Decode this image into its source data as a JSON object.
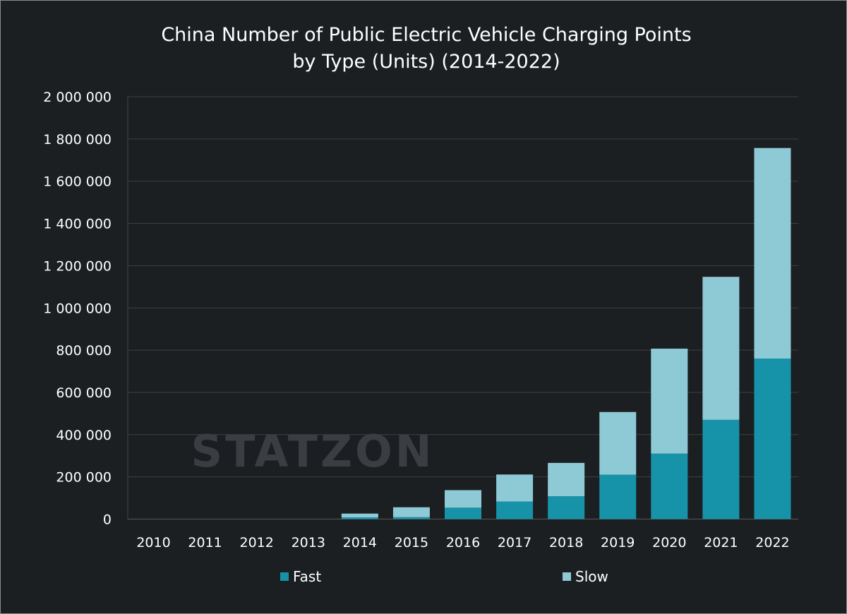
{
  "chart_data": {
    "type": "bar",
    "stacked": true,
    "title": "China Number of Public Electric Vehicle Charging Points by Type (Units) (2014-2022)",
    "title_lines": [
      "China Number of Public Electric Vehicle Charging Points",
      "by Type (Units) (2014-2022)"
    ],
    "categories": [
      "2010",
      "2011",
      "2012",
      "2013",
      "2014",
      "2015",
      "2016",
      "2017",
      "2018",
      "2019",
      "2020",
      "2021",
      "2022"
    ],
    "series": [
      {
        "name": "Fast",
        "color": "#1693a9",
        "values": [
          0,
          0,
          0,
          0,
          8000,
          9000,
          54000,
          83000,
          108000,
          210000,
          310000,
          470000,
          760000
        ]
      },
      {
        "name": "Slow",
        "color": "#8ecad6",
        "values": [
          0,
          0,
          0,
          0,
          18000,
          47000,
          83000,
          128000,
          158000,
          297000,
          497000,
          677000,
          997000
        ]
      }
    ],
    "ylim": [
      0,
      2000000
    ],
    "yticks": [
      "0",
      "200 000",
      "400 000",
      "600 000",
      "800 000",
      "1 000 000",
      "1 200 000",
      "1 400 000",
      "1 600 000",
      "1 800 000",
      "2 000 000"
    ],
    "grid": true,
    "legend": "bottom",
    "watermark": "STATZON"
  }
}
